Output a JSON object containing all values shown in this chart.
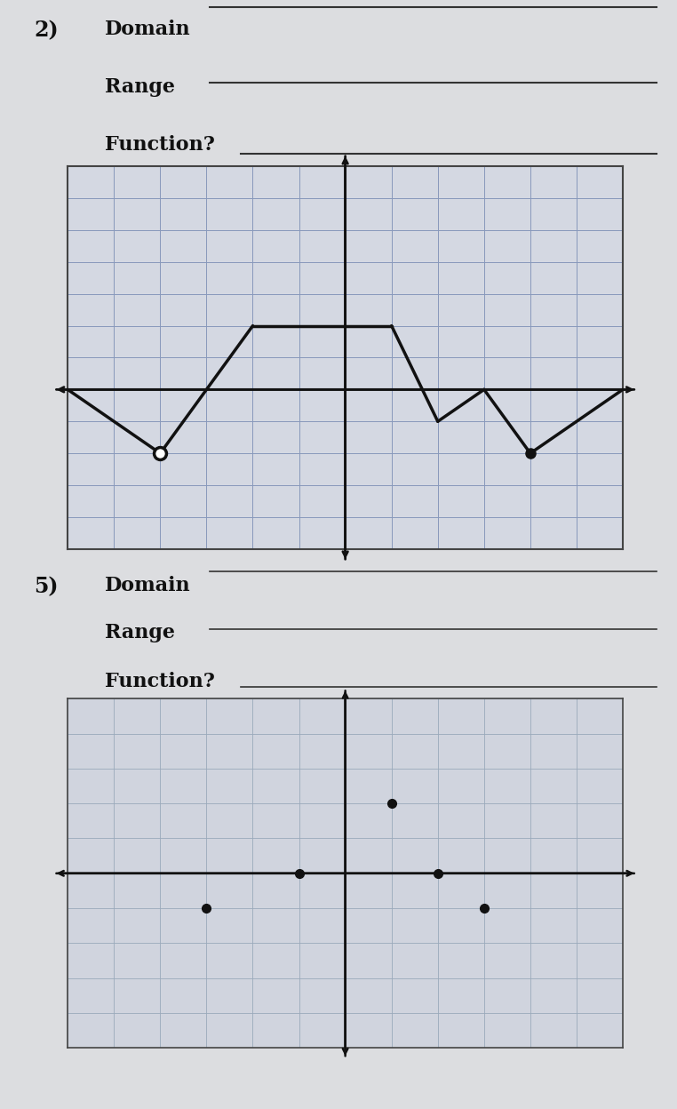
{
  "page_bg": "#dcdde0",
  "graph_bg2": "#d4d8e2",
  "graph_bg5": "#d0d4de",
  "grid_color2": "#8899bb",
  "grid_color5": "#9aaabb",
  "axis_color": "#111111",
  "line_color": "#111111",
  "text_color": "#111111",
  "underline_color": "#333333",
  "border_color": "#444444",
  "label2": "2)",
  "label5": "5)",
  "domain_text": "Domain",
  "range_text": "Range",
  "function_text": "Function?",
  "font_size_number": 17,
  "font_size_label": 16,
  "graph2_xlim": [
    -6,
    6
  ],
  "graph2_ylim": [
    -5,
    7
  ],
  "graph2_segments": [
    [
      [
        -6,
        0
      ],
      [
        -4,
        -2
      ]
    ],
    [
      [
        -4,
        -2
      ],
      [
        -2,
        2
      ]
    ],
    [
      [
        -2,
        2
      ],
      [
        1,
        2
      ]
    ],
    [
      [
        1,
        2
      ],
      [
        2,
        -1
      ]
    ],
    [
      [
        2,
        -1
      ],
      [
        3,
        0
      ]
    ],
    [
      [
        3,
        0
      ],
      [
        4,
        -2
      ]
    ],
    [
      [
        4,
        -2
      ],
      [
        6,
        0
      ]
    ]
  ],
  "graph2_open_circle": [
    -4,
    -2
  ],
  "graph2_closed_circle": [
    4,
    -2
  ],
  "graph5_xlim": [
    -6,
    6
  ],
  "graph5_ylim": [
    -5,
    5
  ],
  "graph5_points": [
    [
      -3,
      -1
    ],
    [
      -1,
      0
    ],
    [
      1,
      2
    ],
    [
      3,
      -1
    ],
    [
      2,
      0
    ]
  ]
}
